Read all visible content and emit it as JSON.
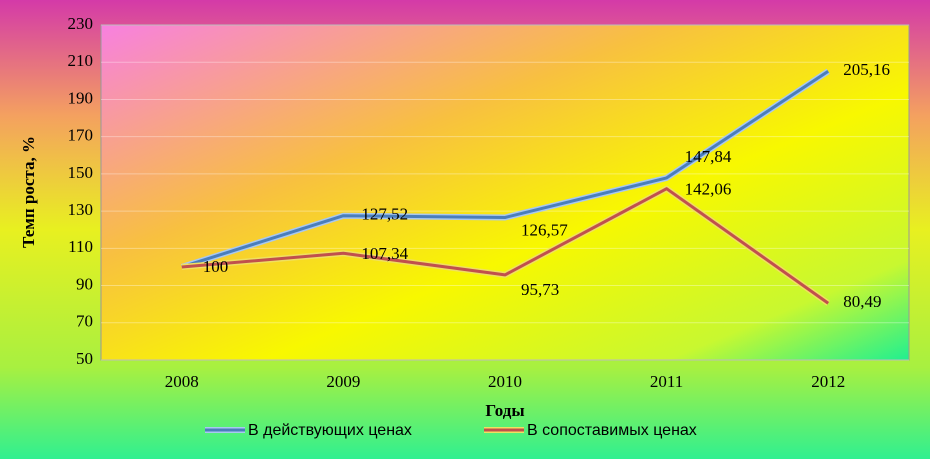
{
  "chart_data": {
    "type": "line",
    "y_label": "Темп роста, %",
    "x_label": "Годы",
    "categories": [
      "2008",
      "2009",
      "2010",
      "2011",
      "2012"
    ],
    "series": [
      {
        "name": "В действующих ценах",
        "color": "#4a7ebb",
        "values": [
          100,
          127.52,
          126.57,
          147.84,
          205.16
        ],
        "value_labels": [
          null,
          "127,52",
          "126,57",
          "147,84",
          "205,16"
        ]
      },
      {
        "name": "В сопоставимых ценах",
        "color": "#c0504d",
        "values": [
          100,
          107.34,
          95.73,
          142.06,
          80.49
        ],
        "value_labels": [
          "100",
          "107,34",
          "95,73",
          "142,06",
          "80,49"
        ]
      }
    ],
    "ylim": [
      50,
      230
    ],
    "yticks": [
      50,
      70,
      90,
      110,
      130,
      150,
      170,
      190,
      210,
      230
    ],
    "grid": true
  }
}
